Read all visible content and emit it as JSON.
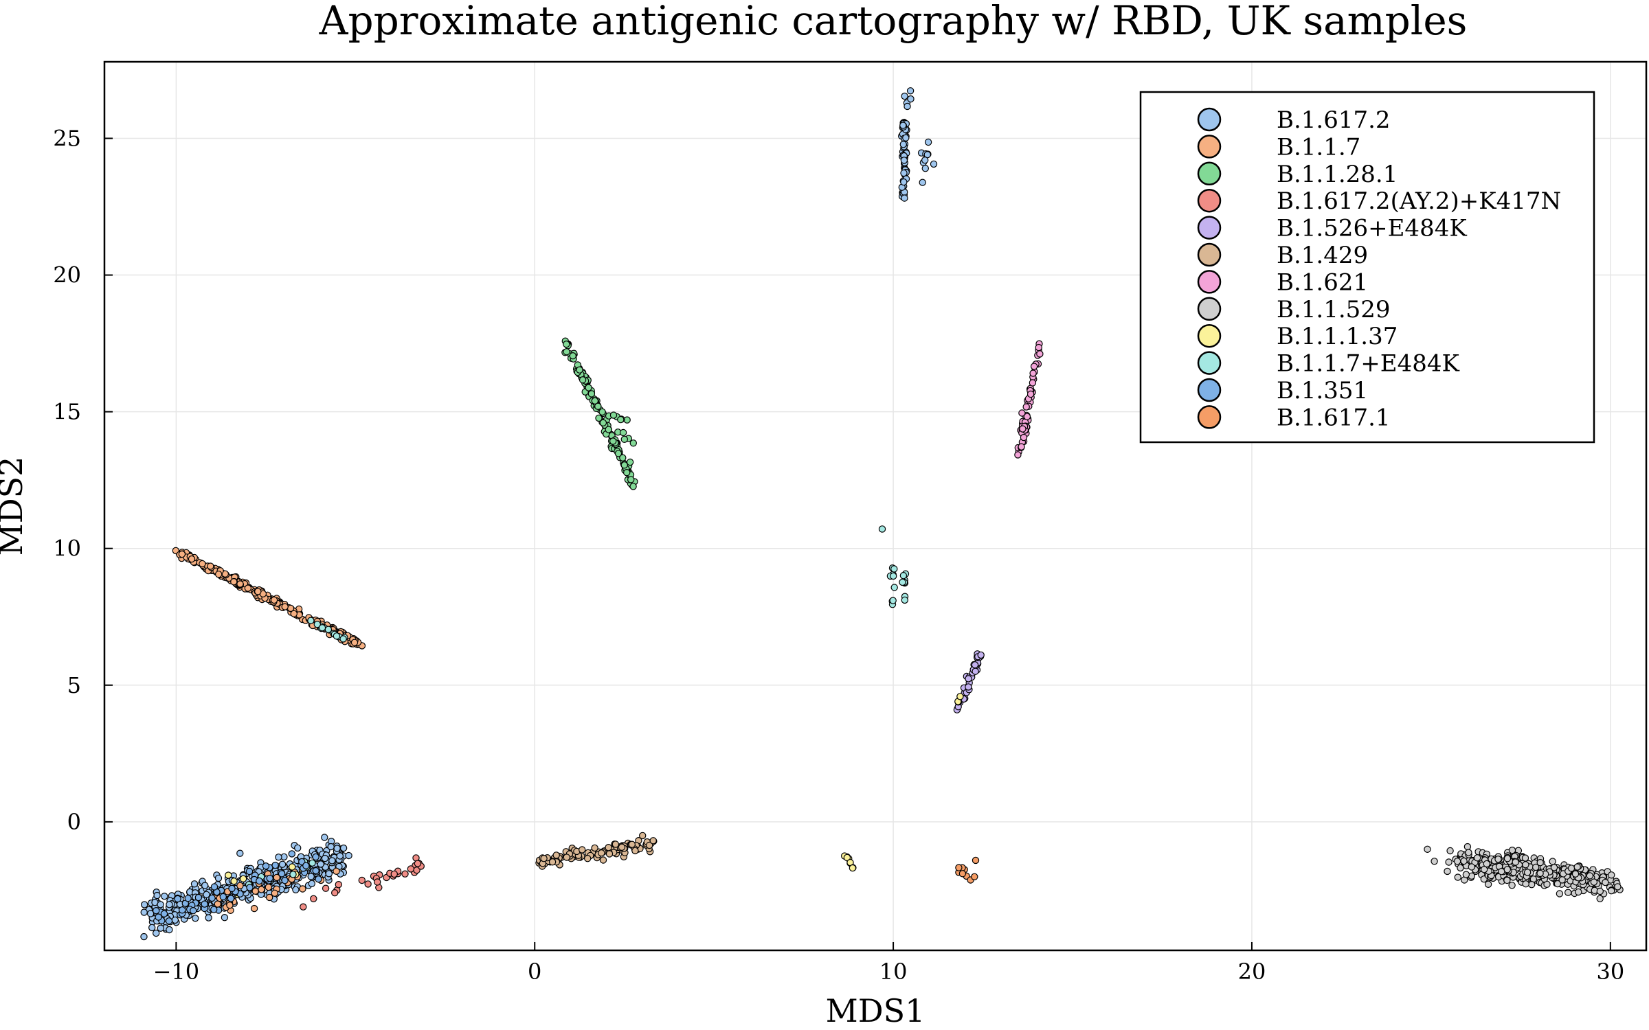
{
  "chart_data": {
    "type": "scatter",
    "title": "Approximate antigenic cartography w/ RBD, UK samples",
    "xlabel": "MDS1",
    "ylabel": "MDS2",
    "xlim": [
      -12,
      31
    ],
    "ylim": [
      -4.7,
      27.8
    ],
    "xticks": [
      -10,
      0,
      10,
      20,
      30
    ],
    "yticks": [
      0,
      5,
      10,
      15,
      20,
      25
    ],
    "xtick_labels": [
      "−10",
      "0",
      "10",
      "20",
      "30"
    ],
    "ytick_labels": [
      "0",
      "5",
      "10",
      "15",
      "20",
      "25"
    ],
    "grid": true,
    "legend_position": "top-right",
    "series": [
      {
        "name": "B.1.617.2",
        "color": "#9fc6ee",
        "clusters": [
          {
            "from": [
              -10.8,
              -3.4
            ],
            "to": [
              -5.3,
              -1.3
            ],
            "spread": [
              0.15,
              0.55
            ],
            "n": 420
          },
          {
            "from": [
              10.3,
              22.8
            ],
            "to": [
              10.3,
              25.6
            ],
            "spread": [
              0.05,
              0.1
            ],
            "n": 60
          },
          {
            "from": [
              10.9,
              23.0
            ],
            "to": [
              10.9,
              24.8
            ],
            "spread": [
              0.15,
              0.3
            ],
            "n": 10
          },
          {
            "from": [
              10.0,
              26.8
            ],
            "to": [
              10.7,
              26.2
            ],
            "spread": [
              0.15,
              0.3
            ],
            "n": 5
          }
        ]
      },
      {
        "name": "B.1.1.7",
        "color": "#f6b082",
        "clusters": [
          {
            "from": [
              -10.0,
              9.9
            ],
            "to": [
              -4.9,
              6.5
            ],
            "spread": [
              0.1,
              0.1
            ],
            "n": 260
          },
          {
            "from": [
              -9.0,
              -3.0
            ],
            "to": [
              -5.5,
              -1.8
            ],
            "spread": [
              0.15,
              0.4
            ],
            "n": 30
          }
        ]
      },
      {
        "name": "B.1.1.28.1",
        "color": "#82d996",
        "clusters": [
          {
            "from": [
              0.9,
              17.5
            ],
            "to": [
              2.8,
              12.2
            ],
            "spread": [
              0.08,
              0.1
            ],
            "n": 130
          },
          {
            "from": [
              2.2,
              15.0
            ],
            "to": [
              2.8,
              13.4
            ],
            "spread": [
              0.2,
              0.2
            ],
            "n": 12
          }
        ]
      },
      {
        "name": "B.1.617.2(AY.2)+K417N",
        "color": "#f08d86",
        "clusters": [
          {
            "from": [
              -4.9,
              -2.3
            ],
            "to": [
              -3.1,
              -1.6
            ],
            "spread": [
              0.1,
              0.2
            ],
            "n": 22
          },
          {
            "from": [
              -6.5,
              -2.9
            ],
            "to": [
              -5.5,
              -2.4
            ],
            "spread": [
              0.2,
              0.3
            ],
            "n": 6
          }
        ]
      },
      {
        "name": "B.1.526+E484K",
        "color": "#c4b2f0",
        "clusters": [
          {
            "from": [
              11.8,
              4.1
            ],
            "to": [
              12.4,
              6.1
            ],
            "spread": [
              0.08,
              0.1
            ],
            "n": 40
          }
        ]
      },
      {
        "name": "B.1.429",
        "color": "#d9b794",
        "clusters": [
          {
            "from": [
              0.1,
              -1.5
            ],
            "to": [
              3.3,
              -0.8
            ],
            "spread": [
              0.1,
              0.2
            ],
            "n": 110
          }
        ]
      },
      {
        "name": "B.1.621",
        "color": "#f3a4d8",
        "clusters": [
          {
            "from": [
              13.5,
              13.4
            ],
            "to": [
              14.1,
              17.5
            ],
            "spread": [
              0.07,
              0.1
            ],
            "n": 60
          }
        ]
      },
      {
        "name": "B.1.1.529",
        "color": "#cfcfcf",
        "clusters": [
          {
            "from": [
              25.8,
              -1.4
            ],
            "to": [
              29.8,
              -2.2
            ],
            "spread": [
              0.6,
              0.42
            ],
            "n": 380
          }
        ]
      },
      {
        "name": "B.1.1.1.37",
        "color": "#fbf29a",
        "clusters": [
          {
            "from": [
              8.6,
              -1.1
            ],
            "to": [
              8.9,
              -1.7
            ],
            "spread": [
              0.05,
              0.05
            ],
            "n": 8
          },
          {
            "from": [
              -9.0,
              -2.5
            ],
            "to": [
              -6.5,
              -1.6
            ],
            "spread": [
              0.15,
              0.3
            ],
            "n": 8
          },
          {
            "from": [
              11.8,
              4.4
            ],
            "to": [
              12.0,
              4.8
            ],
            "spread": [
              0.05,
              0.05
            ],
            "n": 3
          }
        ]
      },
      {
        "name": "B.1.1.7+E484K",
        "color": "#a4e8e2",
        "clusters": [
          {
            "from": [
              10.0,
              9.3
            ],
            "to": [
              10.0,
              8.0
            ],
            "spread": [
              0.05,
              0.1
            ],
            "n": 10
          },
          {
            "from": [
              10.3,
              9.3
            ],
            "to": [
              10.3,
              8.2
            ],
            "spread": [
              0.04,
              0.1
            ],
            "n": 8
          },
          {
            "from": [
              9.7,
              10.7
            ],
            "to": [
              9.7,
              10.7
            ],
            "spread": [
              0.01,
              0.01
            ],
            "n": 1
          },
          {
            "from": [
              -6.5,
              7.5
            ],
            "to": [
              -5.3,
              6.7
            ],
            "spread": [
              0.05,
              0.05
            ],
            "n": 15
          },
          {
            "from": [
              -8.5,
              -2.5
            ],
            "to": [
              -6.0,
              -1.6
            ],
            "spread": [
              0.15,
              0.3
            ],
            "n": 8
          }
        ]
      },
      {
        "name": "B.1.351",
        "color": "#7fb1e6",
        "clusters": [
          {
            "from": [
              -10.5,
              -3.5
            ],
            "to": [
              -6.0,
              -1.5
            ],
            "spread": [
              0.15,
              0.45
            ],
            "n": 60
          }
        ]
      },
      {
        "name": "B.1.617.1",
        "color": "#f59d66",
        "clusters": [
          {
            "from": [
              11.7,
              -1.6
            ],
            "to": [
              12.2,
              -2.0
            ],
            "spread": [
              0.1,
              0.1
            ],
            "n": 8
          },
          {
            "from": [
              12.3,
              -1.4
            ],
            "to": [
              12.3,
              -1.4
            ],
            "spread": [
              0.01,
              0.01
            ],
            "n": 1
          }
        ]
      }
    ]
  }
}
